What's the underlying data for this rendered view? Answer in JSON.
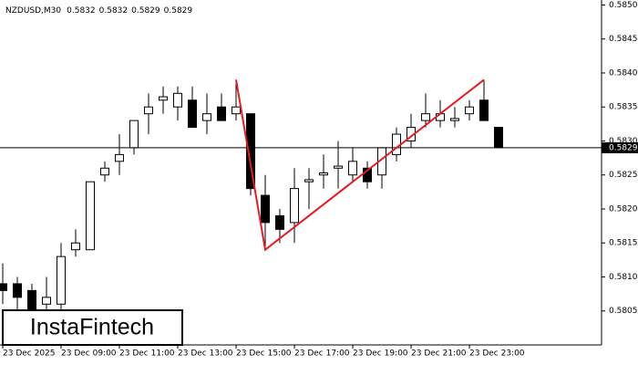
{
  "chart_data": {
    "type": "candlestick",
    "symbol": "NZDUSD,M30",
    "header_ohlc": [
      0.5832,
      0.5832,
      0.5829,
      0.5829
    ],
    "logo": "InstaFintech",
    "categories": [
      "23 Dec 2025",
      null,
      null,
      null,
      "23 Dec 09:00",
      null,
      null,
      null,
      "23 Dec 11:00",
      null,
      null,
      null,
      "23 Dec 13:00",
      null,
      null,
      null,
      "23 Dec 15:00",
      null,
      null,
      null,
      "23 Dec 17:00",
      null,
      null,
      null,
      "23 Dec 19:00",
      null,
      null,
      null,
      "23 Dec 21:00",
      null,
      null,
      null,
      "23 Dec 23:00",
      null,
      null
    ],
    "open": [
      0.5809,
      0.5809,
      0.5808,
      0.5806,
      0.5806,
      0.5814,
      0.5814,
      0.5825,
      0.5827,
      0.5829,
      0.5834,
      0.5836,
      0.5835,
      0.5836,
      0.5833,
      0.5835,
      0.5834,
      0.5834,
      0.5822,
      0.5819,
      0.5818,
      0.5824,
      0.5825,
      0.5826,
      0.5825,
      0.5826,
      0.5825,
      0.5828,
      0.583,
      0.5833,
      0.5833,
      0.5833,
      0.5834,
      0.5836,
      0.5832
    ],
    "high": [
      0.5812,
      0.581,
      0.5809,
      0.581,
      0.5815,
      0.5817,
      0.5824,
      0.5827,
      0.5831,
      0.5833,
      0.5837,
      0.5838,
      0.5838,
      0.5838,
      0.5837,
      0.5837,
      0.5839,
      0.5834,
      0.5825,
      0.582,
      0.5826,
      0.5826,
      0.5828,
      0.583,
      0.5829,
      0.5827,
      0.5829,
      0.5832,
      0.5834,
      0.5837,
      0.5836,
      0.5835,
      0.5836,
      0.5839,
      0.5832
    ],
    "low": [
      0.5806,
      0.5805,
      0.5803,
      0.5804,
      0.5805,
      0.5813,
      0.5814,
      0.5824,
      0.5825,
      0.5828,
      0.5831,
      0.5834,
      0.5833,
      0.5832,
      0.5831,
      0.5833,
      0.5833,
      0.5822,
      0.5814,
      0.5815,
      0.5815,
      0.582,
      0.5823,
      0.5823,
      0.5824,
      0.5823,
      0.5823,
      0.5827,
      0.5829,
      0.5832,
      0.5832,
      0.5832,
      0.5833,
      0.5833,
      0.5829
    ],
    "close": [
      0.5808,
      0.5807,
      0.5805,
      0.5807,
      0.5813,
      0.5815,
      0.5824,
      0.5826,
      0.5828,
      0.5833,
      0.5835,
      0.58365,
      0.5837,
      0.5832,
      0.5834,
      0.5833,
      0.5835,
      0.5823,
      0.5818,
      0.5817,
      0.5823,
      0.58243,
      0.58253,
      0.58263,
      0.5827,
      0.5824,
      0.5829,
      0.5831,
      0.5832,
      0.5834,
      0.5834,
      0.58333,
      0.5835,
      0.5833,
      0.5829
    ],
    "ylim": [
      0.58,
      0.5851
    ],
    "yticks": [
      0.5805,
      {
        "value": 0.581,
        "label": "0.5810"
      },
      0.5815,
      {
        "value": 0.582,
        "label": "0.5820"
      },
      0.5825,
      {
        "value": 0.583,
        "label": "0.5830"
      },
      0.5835,
      {
        "value": 0.584,
        "label": "0.5840"
      },
      0.5845,
      {
        "value": 0.585,
        "label": "0.5850"
      }
    ],
    "last_price": 0.5829,
    "pattern": {
      "color": "#e8191f",
      "index": [
        16,
        18,
        33
      ],
      "price": [
        0.5839,
        0.5814,
        0.5839
      ]
    }
  }
}
